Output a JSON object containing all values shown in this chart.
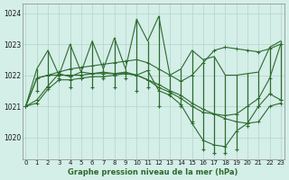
{
  "xlabel": "Graphe pression niveau de la mer (hPa)",
  "ylim": [
    1019.3,
    1024.3
  ],
  "xlim": [
    -0.3,
    23.3
  ],
  "yticks": [
    1020,
    1021,
    1022,
    1023,
    1024
  ],
  "xticks": [
    0,
    1,
    2,
    3,
    4,
    5,
    6,
    7,
    8,
    9,
    10,
    11,
    12,
    13,
    14,
    15,
    16,
    17,
    18,
    19,
    20,
    21,
    22,
    23
  ],
  "xtick_labels": [
    "0",
    "1",
    "2",
    "3",
    "4",
    "5",
    "6",
    "7",
    "8",
    "9",
    "10",
    "11",
    "12",
    "13",
    "14",
    "15",
    "16",
    "17",
    "18",
    "19",
    "20",
    "21",
    "22",
    "23"
  ],
  "background_color": "#d4eee8",
  "grid_color": "#b8d8d0",
  "line_color": "#2d6b2d",
  "smooth_series": [
    [
      1021.0,
      1021.9,
      1022.0,
      1022.0,
      1022.0,
      1022.0,
      1022.05,
      1022.05,
      1022.05,
      1022.05,
      1022.0,
      1021.85,
      1021.7,
      1021.5,
      1021.35,
      1021.1,
      1020.9,
      1020.75,
      1020.6,
      1020.5,
      1020.45,
      1020.5,
      1021.0,
      1021.1
    ],
    [
      1021.0,
      1021.1,
      1021.55,
      1021.85,
      1021.85,
      1021.9,
      1021.95,
      1021.95,
      1022.0,
      1022.05,
      1022.0,
      1021.85,
      1021.6,
      1021.45,
      1021.25,
      1021.0,
      1020.8,
      1020.75,
      1020.7,
      1020.75,
      1021.0,
      1021.25,
      1021.9,
      1023.0
    ],
    [
      1021.0,
      1021.9,
      1022.0,
      1022.1,
      1022.2,
      1022.25,
      1022.3,
      1022.35,
      1022.4,
      1022.45,
      1022.5,
      1022.4,
      1022.2,
      1022.0,
      1021.8,
      1022.0,
      1022.4,
      1022.8,
      1022.9,
      1022.85,
      1022.8,
      1022.75,
      1022.85,
      1023.0
    ],
    [
      1021.0,
      1021.2,
      1021.65,
      1022.05,
      1021.95,
      1022.1,
      1022.05,
      1022.1,
      1022.05,
      1022.1,
      1022.0,
      1022.15,
      1021.5,
      1021.35,
      1021.05,
      1020.45,
      1019.9,
      1019.75,
      1019.7,
      1020.2,
      1020.45,
      1021.0,
      1021.4,
      1021.2
    ]
  ],
  "spike_tops": [
    1021.0,
    1022.2,
    1022.8,
    1022.0,
    1023.0,
    1022.1,
    1023.1,
    1022.2,
    1023.2,
    1022.2,
    1023.8,
    1023.1,
    1023.9,
    1022.0,
    1022.2,
    1022.8,
    1022.5,
    1022.6,
    1022.0,
    1022.0,
    1022.05,
    1022.1,
    1022.9,
    1023.1
  ],
  "spike_bottoms": [
    1021.0,
    1021.5,
    1021.6,
    1021.9,
    1021.6,
    1021.9,
    1021.6,
    1021.9,
    1021.6,
    1021.9,
    1021.5,
    1021.6,
    1021.0,
    1021.4,
    1021.0,
    1020.5,
    1019.6,
    1019.5,
    1019.5,
    1019.6,
    1020.35,
    1021.0,
    1021.4,
    1021.2
  ]
}
